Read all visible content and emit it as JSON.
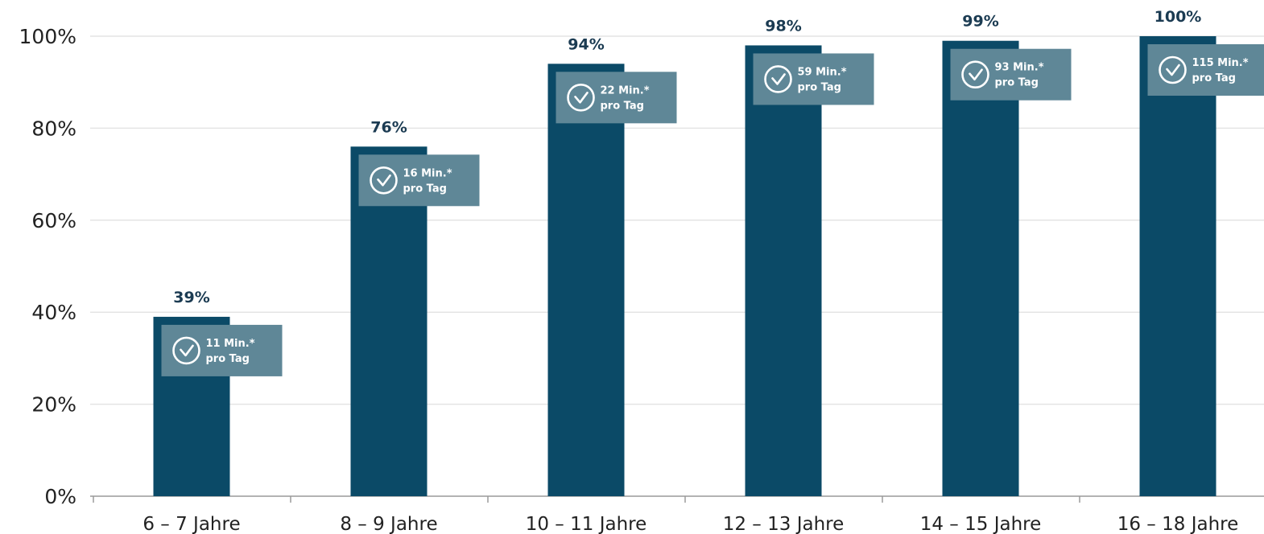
{
  "colors": {
    "bar": "#0b4a67",
    "badge": "#5f8797",
    "grid": "#e4e4e4",
    "axis": "#9a9a9a",
    "value_text": "#1b3b52"
  },
  "icons": {
    "badge_icon": "clock-icon"
  },
  "chart_data": {
    "type": "bar",
    "categories": [
      "6 – 7 Jahre",
      "8 – 9 Jahre",
      "10 – 11 Jahre",
      "12 – 13 Jahre",
      "14 – 15 Jahre",
      "16 – 18 Jahre"
    ],
    "values": [
      39,
      76,
      94,
      98,
      99,
      100
    ],
    "value_labels": [
      "39%",
      "76%",
      "94%",
      "98%",
      "99%",
      "100%"
    ],
    "time_labels": [
      {
        "minutes": "11 Min.*",
        "unit": "pro Tag"
      },
      {
        "minutes": "16 Min.*",
        "unit": "pro Tag"
      },
      {
        "minutes": "22 Min.*",
        "unit": "pro Tag"
      },
      {
        "minutes": "59 Min.*",
        "unit": "pro Tag"
      },
      {
        "minutes": "93 Min.*",
        "unit": "pro Tag"
      },
      {
        "minutes": "115 Min.*",
        "unit": "pro Tag"
      }
    ],
    "y_ticks": [
      "0%",
      "20%",
      "40%",
      "60%",
      "80%",
      "100%"
    ],
    "ylim": [
      0,
      100
    ],
    "grid": true,
    "title": "",
    "xlabel": "",
    "ylabel": ""
  }
}
